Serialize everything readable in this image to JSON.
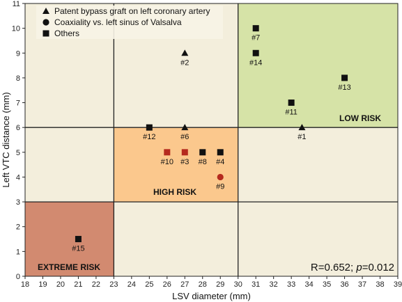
{
  "chart_data": {
    "type": "scatter",
    "xlabel": "LSV diameter (mm)",
    "ylabel": "Left VTC distance (mm)",
    "xlim": [
      18,
      39
    ],
    "ylim": [
      0,
      11
    ],
    "x_ticks": [
      18,
      19,
      20,
      21,
      22,
      23,
      24,
      25,
      26,
      27,
      28,
      29,
      30,
      31,
      32,
      33,
      34,
      35,
      36,
      37,
      38,
      39
    ],
    "y_ticks": [
      0,
      1,
      2,
      3,
      4,
      5,
      6,
      7,
      8,
      9,
      10,
      11
    ],
    "grid": false,
    "legend_position": "top-left",
    "legend": [
      {
        "marker": "triangle",
        "label": "Patent bypass graft on left coronary artery"
      },
      {
        "marker": "circle",
        "label": "Coaxiality vs. left sinus of Valsalva"
      },
      {
        "marker": "square",
        "label": "Others"
      }
    ],
    "zones": [
      {
        "label": "EXTREME RISK",
        "x": [
          18,
          23
        ],
        "y": [
          0,
          3
        ],
        "color": "#d28a70"
      },
      {
        "label": "HIGH RISK",
        "x": [
          23,
          30
        ],
        "y": [
          3,
          6
        ],
        "color": "#fbc88d"
      },
      {
        "label": "LOW RISK",
        "x": [
          30,
          39
        ],
        "y": [
          6,
          11
        ],
        "color": "#d6e3a7"
      }
    ],
    "background_color": "#f3eedc",
    "points": [
      {
        "id": "#1",
        "x": 33.6,
        "y": 6.0,
        "marker": "triangle",
        "color": "#111111"
      },
      {
        "id": "#2",
        "x": 27.0,
        "y": 9.0,
        "marker": "triangle",
        "color": "#111111"
      },
      {
        "id": "#3",
        "x": 27.0,
        "y": 5.0,
        "marker": "square",
        "color": "#b52a1e"
      },
      {
        "id": "#4",
        "x": 29.0,
        "y": 5.0,
        "marker": "square",
        "color": "#111111"
      },
      {
        "id": "#6",
        "x": 27.0,
        "y": 6.0,
        "marker": "triangle",
        "color": "#111111"
      },
      {
        "id": "#7",
        "x": 31.0,
        "y": 10.0,
        "marker": "square",
        "color": "#111111"
      },
      {
        "id": "#8",
        "x": 28.0,
        "y": 5.0,
        "marker": "square",
        "color": "#111111"
      },
      {
        "id": "#9",
        "x": 29.0,
        "y": 4.0,
        "marker": "circle",
        "color": "#b52a1e"
      },
      {
        "id": "#10",
        "x": 26.0,
        "y": 5.0,
        "marker": "square",
        "color": "#b52a1e"
      },
      {
        "id": "#11",
        "x": 33.0,
        "y": 7.0,
        "marker": "square",
        "color": "#111111"
      },
      {
        "id": "#12",
        "x": 25.0,
        "y": 6.0,
        "marker": "square",
        "color": "#111111"
      },
      {
        "id": "#13",
        "x": 36.0,
        "y": 8.0,
        "marker": "square",
        "color": "#111111"
      },
      {
        "id": "#14",
        "x": 31.0,
        "y": 9.0,
        "marker": "square",
        "color": "#111111"
      },
      {
        "id": "#15",
        "x": 21.0,
        "y": 1.5,
        "marker": "square",
        "color": "#111111"
      }
    ],
    "annotation": {
      "prefix": "R=0.652; ",
      "p_symbol": "p",
      "suffix": "=0.012"
    }
  }
}
